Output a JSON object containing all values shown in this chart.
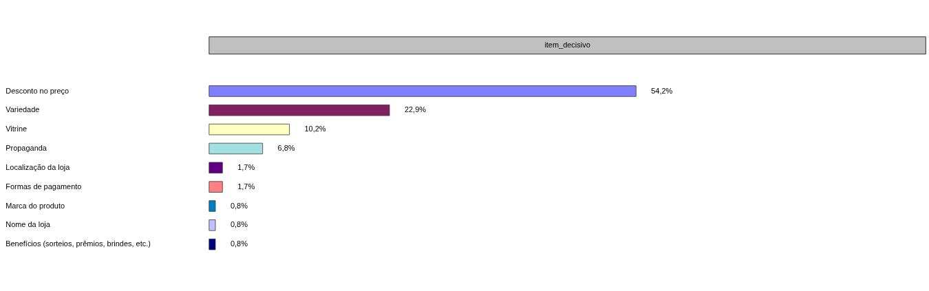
{
  "chart_data": {
    "type": "bar",
    "orientation": "horizontal",
    "title": "item_decisivo",
    "categories": [
      "Desconto no preço",
      "Variedade",
      "Vitrine",
      "Propaganda",
      "Localização da loja",
      "Formas de pagamento",
      "Marca do produto",
      "Nome da loja",
      "Benefícios (sorteios, prêmios, brindes, etc.)"
    ],
    "values": [
      54.2,
      22.9,
      10.2,
      6.8,
      1.7,
      1.7,
      0.8,
      0.8,
      0.8
    ],
    "value_labels": [
      "54,2%",
      "22,9%",
      "10,2%",
      "6,8%",
      "1,7%",
      "1,7%",
      "0,8%",
      "0,8%",
      "0,8%"
    ],
    "colors": [
      "#8080ff",
      "#802060",
      "#ffffc0",
      "#a0e0e0",
      "#600080",
      "#ff8080",
      "#0080c0",
      "#c0c0ff",
      "#000080"
    ]
  }
}
